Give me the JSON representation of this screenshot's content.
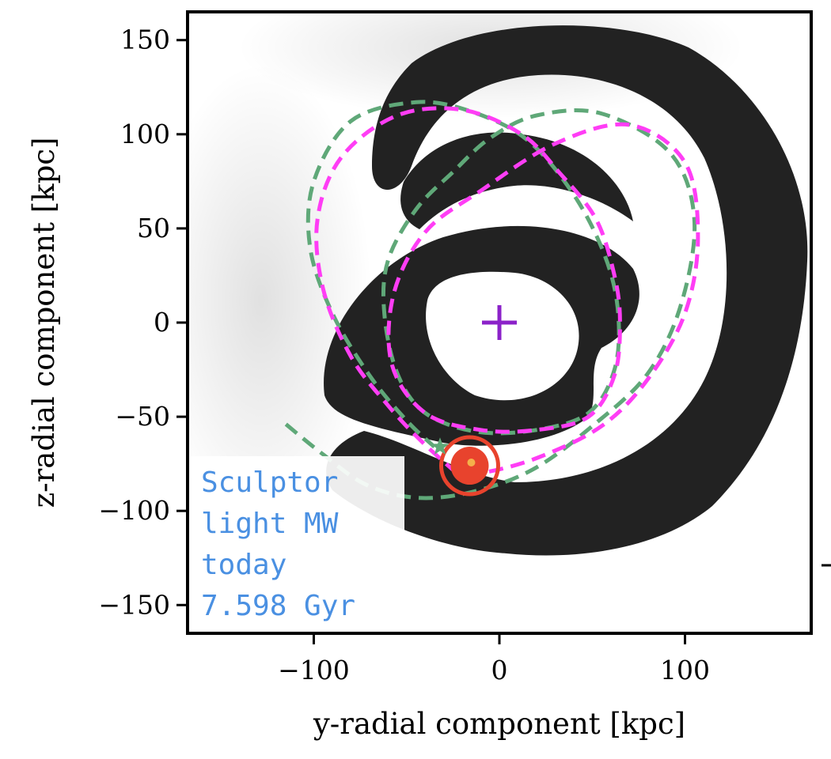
{
  "chart_data": {
    "type": "scatter",
    "title": "",
    "xlabel": "y-radial component [kpc]",
    "ylabel": "z-radial component [kpc]",
    "xlim": [
      -168,
      168
    ],
    "ylim": [
      -165,
      165
    ],
    "xticks": [
      -100,
      0,
      100
    ],
    "xtick_labels": [
      "−100",
      "0",
      "100"
    ],
    "yticks": [
      150,
      100,
      50,
      0,
      -50,
      -100,
      -150
    ],
    "ytick_labels": [
      "150",
      "100",
      "50",
      "0",
      "−50",
      "−100",
      "−150"
    ],
    "grid": false,
    "legend": "none",
    "annotation": {
      "lines": [
        "Sculptor",
        "light MW",
        "today",
        "7.598 Gyr"
      ],
      "placement": "bottom-left",
      "color": "#4a90e2"
    },
    "galactic_center": {
      "x": 0,
      "y": 0,
      "marker": "plus",
      "color": "#8b22c9"
    },
    "satellite_today": {
      "x": -16,
      "y": -76,
      "color": "#e8432d"
    },
    "orbit_start": {
      "x": -32,
      "y": -66,
      "marker": "star"
    },
    "orbits": [
      {
        "style": "dashed",
        "color": "#ff3df5",
        "points": [
          [
            -23,
            -80
          ],
          [
            -42,
            -63
          ],
          [
            -60,
            -44
          ],
          [
            -80,
            -18
          ],
          [
            -95,
            18
          ],
          [
            -98,
            55
          ],
          [
            -85,
            88
          ],
          [
            -55,
            110
          ],
          [
            -20,
            113
          ],
          [
            12,
            100
          ],
          [
            32,
            80
          ],
          [
            52,
            55
          ],
          [
            62,
            25
          ],
          [
            65,
            0
          ],
          [
            62,
            -28
          ],
          [
            48,
            -50
          ],
          [
            20,
            -57
          ],
          [
            -10,
            -57
          ],
          [
            -40,
            -48
          ],
          [
            -58,
            -22
          ],
          [
            -57,
            15
          ],
          [
            -40,
            48
          ],
          [
            -10,
            70
          ],
          [
            30,
            95
          ],
          [
            70,
            105
          ],
          [
            100,
            85
          ],
          [
            107,
            45
          ],
          [
            100,
            5
          ],
          [
            80,
            -30
          ],
          [
            55,
            -55
          ],
          [
            20,
            -72
          ],
          [
            -10,
            -80
          ],
          [
            -23,
            -80
          ]
        ]
      },
      {
        "style": "dashed",
        "color": "#5fa878",
        "points": [
          [
            -115,
            -54
          ],
          [
            -95,
            -70
          ],
          [
            -72,
            -86
          ],
          [
            -45,
            -93
          ],
          [
            -15,
            -90
          ],
          [
            18,
            -78
          ],
          [
            50,
            -55
          ],
          [
            80,
            -27
          ],
          [
            98,
            10
          ],
          [
            105,
            55
          ],
          [
            92,
            90
          ],
          [
            55,
            111
          ],
          [
            20,
            110
          ],
          [
            -5,
            98
          ],
          [
            -25,
            80
          ],
          [
            -45,
            60
          ],
          [
            -60,
            33
          ],
          [
            -62,
            5
          ],
          [
            -55,
            -27
          ],
          [
            -40,
            -48
          ],
          [
            -12,
            -58
          ],
          [
            20,
            -57
          ],
          [
            48,
            -48
          ],
          [
            62,
            -25
          ],
          [
            64,
            5
          ],
          [
            57,
            35
          ],
          [
            40,
            68
          ],
          [
            15,
            97
          ],
          [
            -15,
            112
          ],
          [
            -45,
            117
          ],
          [
            -80,
            107
          ],
          [
            -100,
            75
          ],
          [
            -102,
            40
          ],
          [
            -90,
            5
          ],
          [
            -70,
            -28
          ],
          [
            -50,
            -52
          ],
          [
            -35,
            -66
          ]
        ]
      }
    ],
    "colors": {
      "stream": "#222222",
      "orbit_model": "#ff3df5",
      "orbit_reference": "#5fa878",
      "satellite": "#e8432d",
      "center_marker": "#8b22c9",
      "annotation_text": "#4a90e2"
    }
  }
}
